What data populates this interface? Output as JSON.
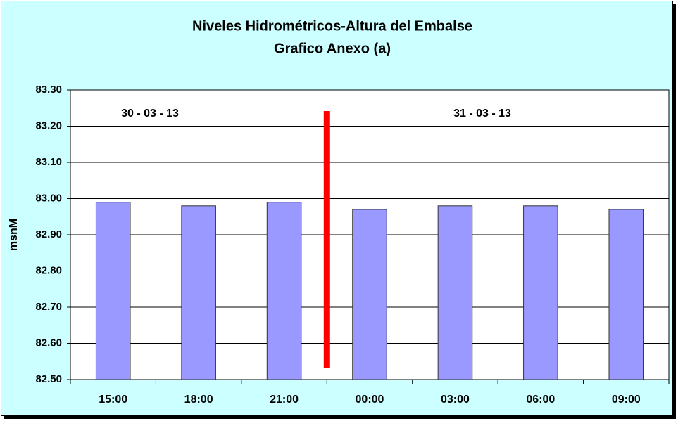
{
  "chart_data": {
    "type": "bar",
    "title": "Niveles Hidrométricos-Altura del Embalse",
    "subtitle": "Grafico Anexo (a)",
    "y_label": "msnM",
    "annotations": [
      "30 - 03 - 13",
      "31 - 03 - 13"
    ],
    "categories": [
      "15:00",
      "18:00",
      "21:00",
      "00:00",
      "03:00",
      "06:00",
      "09:00"
    ],
    "values": [
      82.99,
      82.98,
      82.99,
      82.97,
      82.98,
      82.98,
      82.97
    ],
    "color": "#9999ff",
    "ylim": [
      82.5,
      83.3
    ],
    "yticks": [
      {
        "value": 82.5,
        "label": "82.50"
      },
      {
        "value": 82.6,
        "label": "82.60"
      },
      {
        "value": 82.7,
        "label": "82.70"
      },
      {
        "value": 82.8,
        "label": "82.80"
      },
      {
        "value": 82.9,
        "label": "82.90"
      },
      {
        "value": 83.0,
        "label": "83.00"
      },
      {
        "value": 83.1,
        "label": "83.10"
      },
      {
        "value": 83.2,
        "label": "83.20"
      },
      {
        "value": 83.3,
        "label": "83.30"
      }
    ],
    "grid": true
  }
}
